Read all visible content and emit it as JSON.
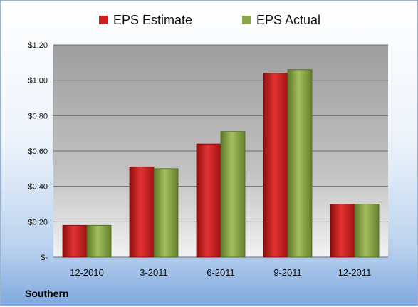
{
  "chart_data": {
    "type": "bar",
    "categories": [
      "12-2010",
      "3-2011",
      "6-2011",
      "9-2011",
      "12-2011"
    ],
    "series": [
      {
        "name": "EPS Estimate",
        "values": [
          0.18,
          0.51,
          0.64,
          1.04,
          0.3
        ],
        "color": "#cc1f1f"
      },
      {
        "name": "EPS Actual",
        "values": [
          0.18,
          0.5,
          0.71,
          1.06,
          0.3
        ],
        "color": "#8aa648"
      }
    ],
    "ylim": [
      0,
      1.2
    ],
    "yticks": [
      0,
      0.2,
      0.4,
      0.6,
      0.8,
      1.0,
      1.2
    ],
    "ytick_labels": [
      "$-",
      "$0.20",
      "$0.40",
      "$0.60",
      "$0.80",
      "$1.00",
      "$1.20"
    ],
    "grid": true,
    "legend_position": "top-center"
  },
  "footer": {
    "company": "Southern"
  }
}
